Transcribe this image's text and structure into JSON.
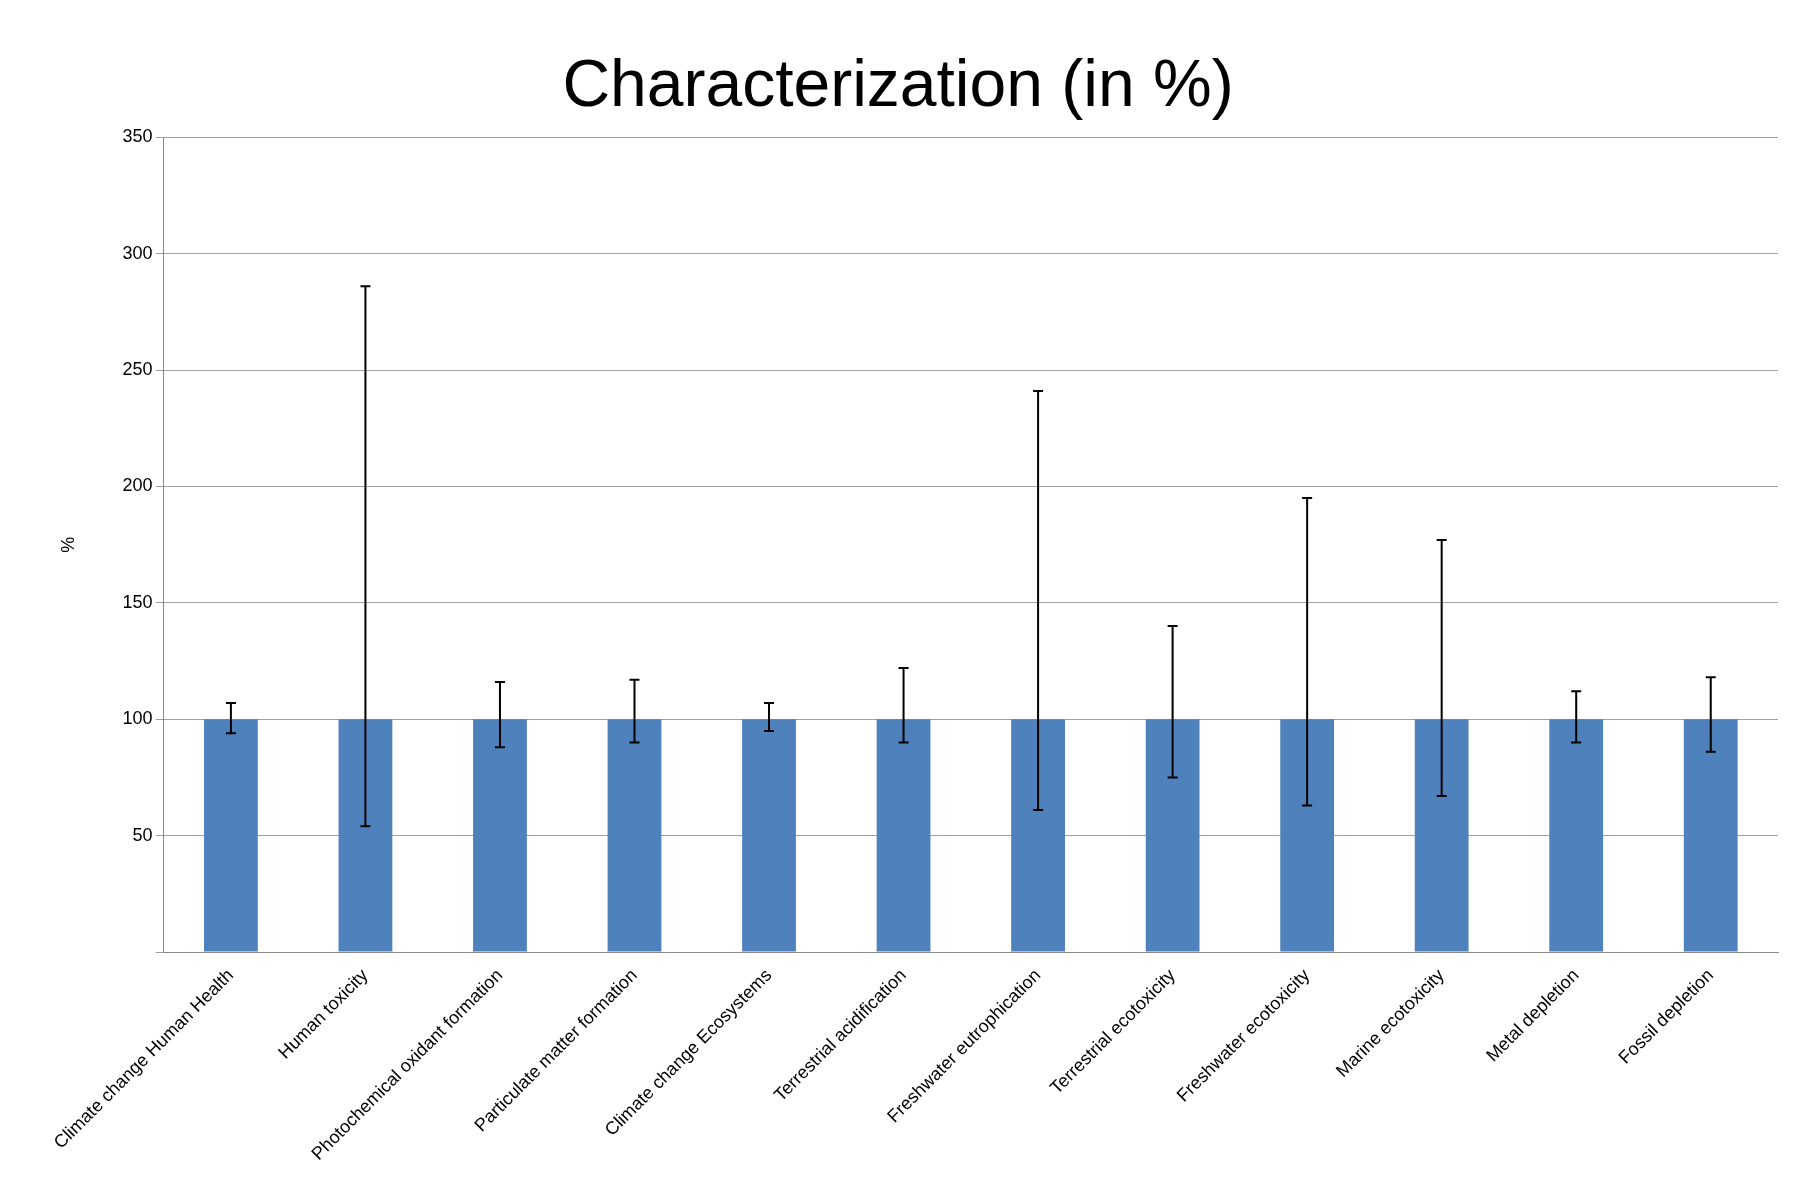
{
  "chart_data": {
    "type": "bar",
    "title": "Characterization (in %)",
    "ylabel": "%",
    "categories": [
      "Climate change Human Health",
      "Human toxicity",
      "Photochemical oxidant formation",
      "Particulate matter formation",
      "Climate change Ecosystems",
      "Terrestrial acidification",
      "Freshwater eutrophication",
      "Terrestrial ecotoxicity",
      "Freshwater ecotoxicity",
      "Marine ecotoxicity",
      "Metal depletion",
      "Fossil depletion"
    ],
    "values": [
      100,
      100,
      100,
      100,
      100,
      100,
      100,
      100,
      100,
      100,
      100,
      100
    ],
    "errors": [
      [
        94,
        107
      ],
      [
        54,
        286
      ],
      [
        88,
        116
      ],
      [
        90,
        117
      ],
      [
        95,
        107
      ],
      [
        90,
        122
      ],
      [
        61,
        241
      ],
      [
        75,
        140
      ],
      [
        63,
        195
      ],
      [
        67,
        177
      ],
      [
        90,
        112
      ],
      [
        86,
        118
      ]
    ],
    "color": "#4f81bd",
    "ylim": [
      0,
      350
    ],
    "yticks": [
      {
        "value": 0,
        "label": null
      },
      50,
      100,
      150,
      200,
      250,
      300,
      350
    ],
    "grid": "y",
    "legend": false
  }
}
